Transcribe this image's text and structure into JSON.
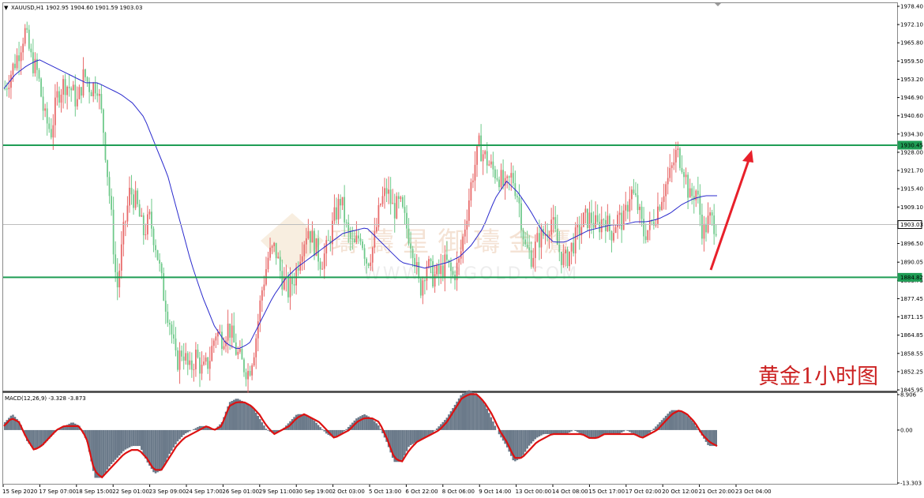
{
  "header": {
    "symbol": "XAUUSD,H1",
    "ohlc": "1902.95 1904.60 1901.59 1903.03"
  },
  "macd_header": "MACD(12,26,9) -3.328 -3.873",
  "caption": "黄金1小时图",
  "watermark": {
    "brand": "璹 璹 星 御 璹 金 鷹",
    "url": "WWW.BIBGOLD.COM"
  },
  "colors": {
    "bull": "#e86a6a",
    "bear": "#6ec98a",
    "ma": "#2a2acd",
    "level": "#1f9d55",
    "macd_hist": "#6b7a8a",
    "macd_signal": "#dd1111",
    "arrow": "#e8202a",
    "caption": "#cc2222"
  },
  "chart_data": [
    {
      "type": "candlestick",
      "title": "XAUUSD,H1",
      "y_ticks": [
        "1978.40",
        "1972.10",
        "1965.80",
        "1959.50",
        "1953.20",
        "1946.90",
        "1940.60",
        "1934.30",
        "1928.00",
        "1921.70",
        "1915.40",
        "1909.10",
        "1896.50",
        "1890.05",
        "1883.75",
        "1877.45",
        "1871.15",
        "1864.85",
        "1858.55",
        "1852.25",
        "1845.95"
      ],
      "ylim": [
        1845.95,
        1978.4
      ],
      "x_ticks": [
        "15 Sep 2020",
        "17 Sep 07:00",
        "18 Sep 15:00",
        "22 Sep 01:00",
        "23 Sep 09:00",
        "24 Sep 17:00",
        "26 Sep 01:00",
        "29 Sep 11:00",
        "30 Sep 19:00",
        "2 Oct 03:00",
        "5 Oct 13:00",
        "6 Oct 22:00",
        "8 Oct 06:00",
        "9 Oct 14:00",
        "13 Oct 00:00",
        "14 Oct 08:00",
        "15 Oct 17:00",
        "17 Oct 02:00",
        "20 Oct 12:00",
        "21 Oct 20:00",
        "23 Oct 04:00"
      ],
      "levels": {
        "resistance": "1930.45",
        "support": "1884.82",
        "current": "1903.03"
      },
      "price_path": [
        1950,
        1956,
        1962,
        1970,
        1960,
        1955,
        1940,
        1935,
        1948,
        1952,
        1950,
        1945,
        1955,
        1950,
        1952,
        1935,
        1910,
        1880,
        1900,
        1915,
        1910,
        1900,
        1905,
        1895,
        1880,
        1870,
        1855,
        1860,
        1852,
        1858,
        1852,
        1856,
        1866,
        1864,
        1868,
        1860,
        1855,
        1852,
        1862,
        1880,
        1892,
        1895,
        1885,
        1880,
        1885,
        1895,
        1902,
        1896,
        1890,
        1895,
        1905,
        1912,
        1900,
        1895,
        1900,
        1890,
        1896,
        1910,
        1915,
        1908,
        1910,
        1902,
        1895,
        1880,
        1890,
        1885,
        1886,
        1890,
        1885,
        1890,
        1905,
        1920,
        1930,
        1926,
        1922,
        1920,
        1915,
        1920,
        1912,
        1895,
        1892,
        1898,
        1900,
        1905,
        1895,
        1890,
        1895,
        1900,
        1905,
        1905,
        1902,
        1906,
        1900,
        1905,
        1904,
        1915,
        1910,
        1900,
        1902,
        1908,
        1915,
        1920,
        1928,
        1924,
        1912,
        1915,
        1900,
        1905,
        1903
      ],
      "ma_path": [
        1950,
        1955,
        1958,
        1960,
        1958,
        1956,
        1954,
        1952,
        1952,
        1950,
        1948,
        1945,
        1940,
        1930,
        1920,
        1905,
        1890,
        1878,
        1868,
        1862,
        1860,
        1862,
        1870,
        1878,
        1884,
        1888,
        1891,
        1894,
        1897,
        1900,
        1901,
        1902,
        1898,
        1894,
        1890,
        1889,
        1888,
        1889,
        1890,
        1892,
        1896,
        1902,
        1912,
        1918,
        1914,
        1908,
        1901,
        1897,
        1897,
        1899,
        1901,
        1902,
        1903,
        1903,
        1904,
        1904,
        1905,
        1907,
        1910,
        1912,
        1913,
        1913
      ]
    },
    {
      "type": "bar",
      "title": "MACD(12,26,9) -3.328 -3.873",
      "y_ticks": [
        "8.906",
        "0.00",
        "-13.303"
      ],
      "ylim": [
        -13.303,
        8.906
      ],
      "values": [
        2,
        4,
        2,
        -3,
        -5,
        -4,
        -2,
        0,
        1,
        2,
        1,
        -3,
        -12,
        -12,
        -9,
        -7,
        -5,
        -4,
        -4,
        -8,
        -11,
        -10,
        -6,
        -3,
        -1,
        0,
        1,
        1,
        0,
        2,
        7,
        8,
        7,
        6,
        3,
        0,
        -1,
        0,
        2,
        4,
        4,
        3,
        1,
        -1,
        -2,
        -1,
        1,
        3,
        4,
        3,
        1,
        -3,
        -8,
        -8,
        -4,
        -3,
        -2,
        -1,
        1,
        3,
        6,
        9,
        10,
        9,
        7,
        3,
        -1,
        -4,
        -8,
        -7,
        -4,
        -2,
        -1,
        -1,
        -1,
        -1,
        0,
        -1,
        -2,
        -2,
        -1,
        -1,
        -1,
        0,
        -1,
        -2,
        -1,
        1,
        3,
        5,
        5,
        4,
        2,
        -1,
        -4,
        -4
      ],
      "signal": [
        1,
        3,
        2,
        -2,
        -5,
        -4,
        -2,
        0,
        1,
        1,
        1,
        -2,
        -10,
        -12,
        -10,
        -8,
        -6,
        -5,
        -5,
        -7,
        -10,
        -10,
        -7,
        -4,
        -2,
        -1,
        0,
        1,
        0,
        1,
        6,
        7,
        7,
        6,
        4,
        1,
        -1,
        0,
        1,
        3,
        4,
        3,
        2,
        0,
        -2,
        -1,
        0,
        2,
        3,
        3,
        2,
        -2,
        -7,
        -8,
        -5,
        -3,
        -2,
        -1,
        0,
        2,
        5,
        8,
        9,
        9,
        7,
        4,
        0,
        -3,
        -7,
        -7,
        -5,
        -3,
        -2,
        -1,
        -1,
        -1,
        -1,
        -1,
        -2,
        -2,
        -1,
        -1,
        -1,
        -1,
        -1,
        -2,
        -1,
        0,
        2,
        4,
        5,
        4,
        2,
        -1,
        -3,
        -4
      ]
    }
  ]
}
